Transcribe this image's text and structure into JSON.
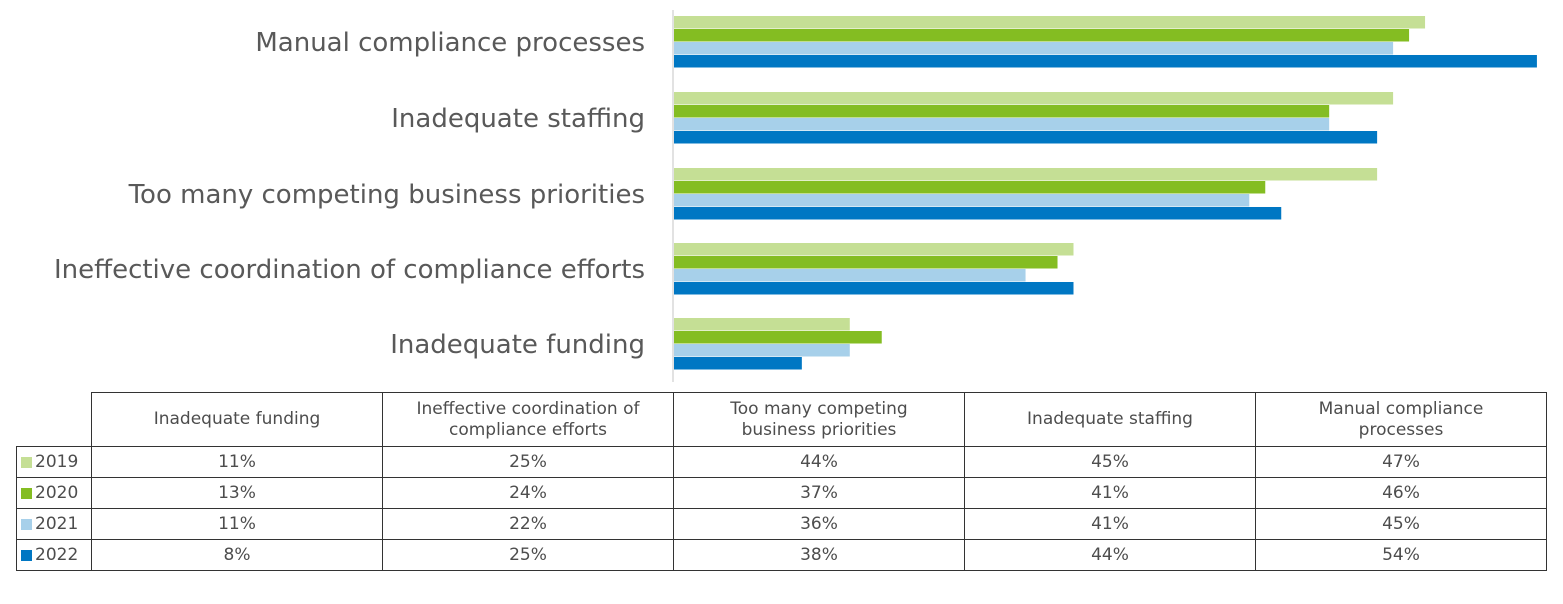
{
  "chart_data": {
    "type": "bar",
    "orientation": "horizontal",
    "title": "",
    "xlabel": "",
    "ylabel": "",
    "xlim": [
      0,
      54
    ],
    "grid": false,
    "legend": "data-table-below",
    "categories_top_to_bottom": [
      "Manual compliance processes",
      "Inadequate staffing",
      "Too many competing business priorities",
      "Ineffective coordination of compliance efforts",
      "Inadequate funding"
    ],
    "table_columns": [
      "Inadequate funding",
      "Ineffective coordination of compliance efforts",
      "Too many competing business priorities",
      "Inadequate staffing",
      "Manual compliance processes"
    ],
    "series": [
      {
        "name": "2019",
        "color": "#c5df95",
        "values": {
          "Inadequate funding": 11,
          "Ineffective coordination of compliance efforts": 25,
          "Too many competing business priorities": 44,
          "Inadequate staffing": 45,
          "Manual compliance processes": 47
        },
        "labels": [
          "11%",
          "25%",
          "44%",
          "45%",
          "47%"
        ]
      },
      {
        "name": "2020",
        "color": "#84bd22",
        "values": {
          "Inadequate funding": 13,
          "Ineffective coordination of compliance efforts": 24,
          "Too many competing business priorities": 37,
          "Inadequate staffing": 41,
          "Manual compliance processes": 46
        },
        "labels": [
          "13%",
          "24%",
          "37%",
          "41%",
          "46%"
        ]
      },
      {
        "name": "2021",
        "color": "#a7d0ea",
        "values": {
          "Inadequate funding": 11,
          "Ineffective coordination of compliance efforts": 22,
          "Too many competing business priorities": 36,
          "Inadequate staffing": 41,
          "Manual compliance processes": 45
        },
        "labels": [
          "11%",
          "22%",
          "36%",
          "41%",
          "45%"
        ]
      },
      {
        "name": "2022",
        "color": "#0077c3",
        "values": {
          "Inadequate funding": 8,
          "Ineffective coordination of compliance efforts": 25,
          "Too many competing business priorities": 38,
          "Inadequate staffing": 44,
          "Manual compliance processes": 54
        },
        "labels": [
          "8%",
          "25%",
          "38%",
          "44%",
          "54%"
        ]
      }
    ]
  },
  "table": {
    "headers": [
      [
        "Inadequate funding"
      ],
      [
        "Ineffective coordination of",
        "compliance efforts"
      ],
      [
        "Too many competing",
        "business priorities"
      ],
      [
        "Inadequate staffing"
      ],
      [
        "Manual compliance",
        "processes"
      ]
    ]
  }
}
